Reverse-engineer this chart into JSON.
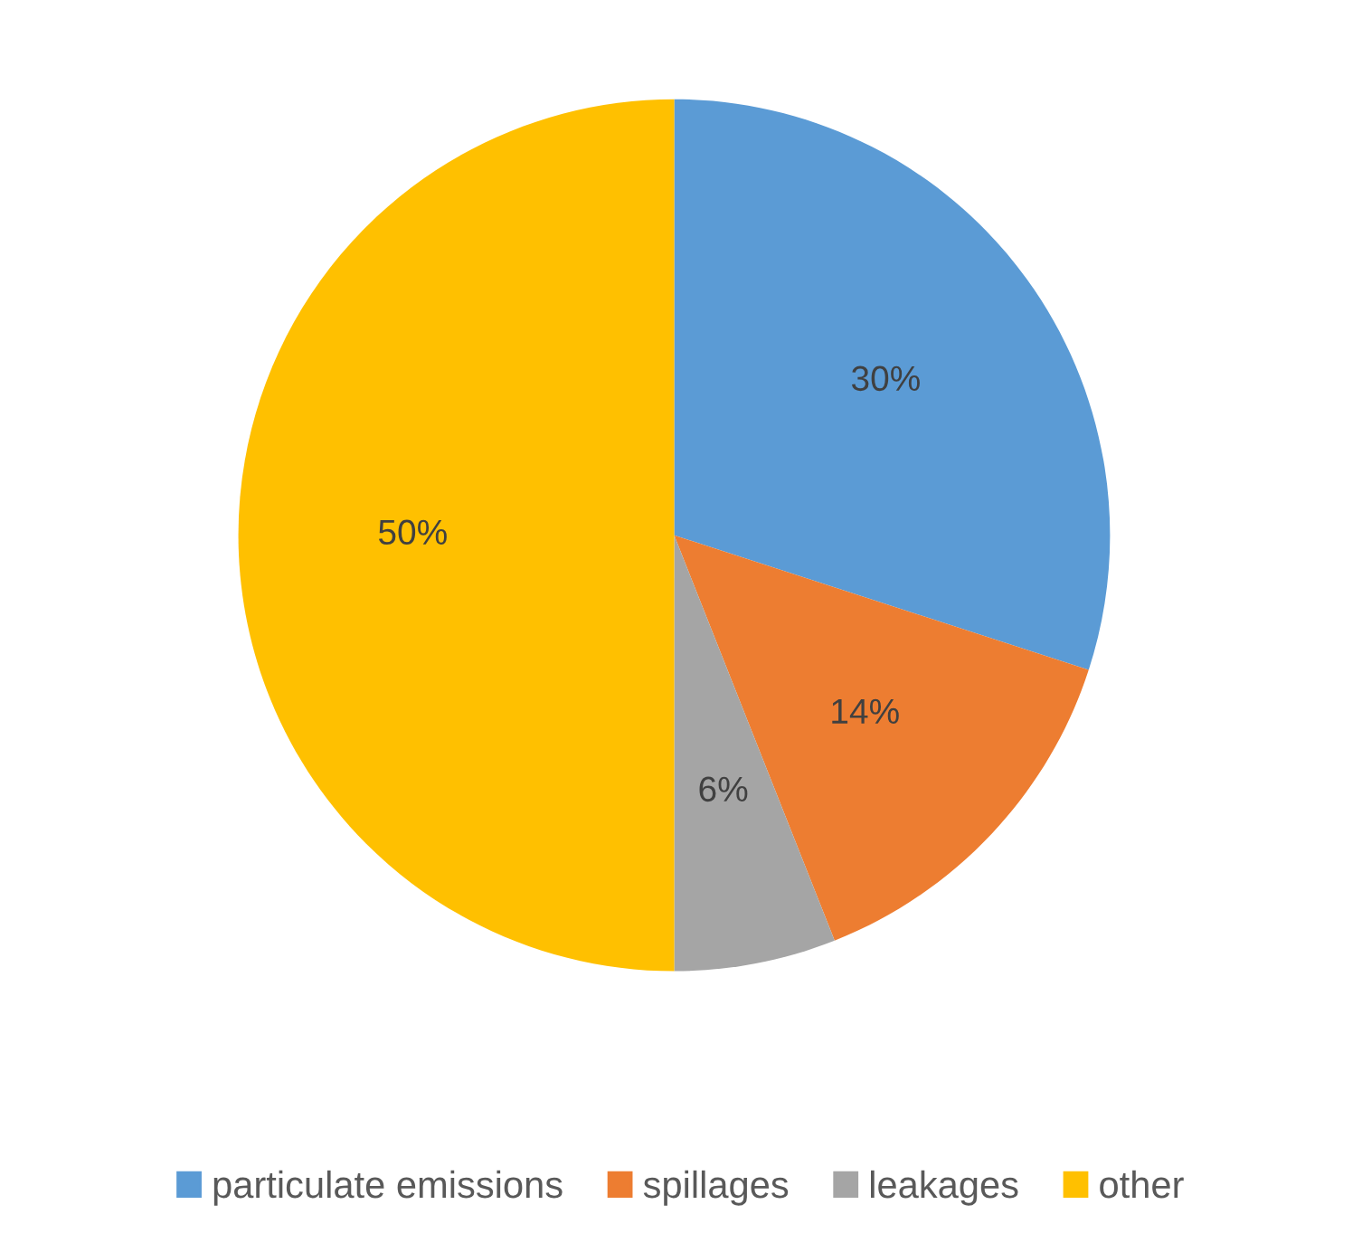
{
  "chart_data": {
    "type": "pie",
    "categories": [
      "particulate emissions",
      "spillages",
      "leakages",
      "other"
    ],
    "values": [
      30,
      14,
      6,
      50
    ],
    "colors": [
      "#5b9bd5",
      "#ed7d31",
      "#a5a5a5",
      "#ffc000"
    ],
    "value_labels": [
      "30%",
      "14%",
      "6%",
      "50%"
    ],
    "legend": "bottom"
  }
}
